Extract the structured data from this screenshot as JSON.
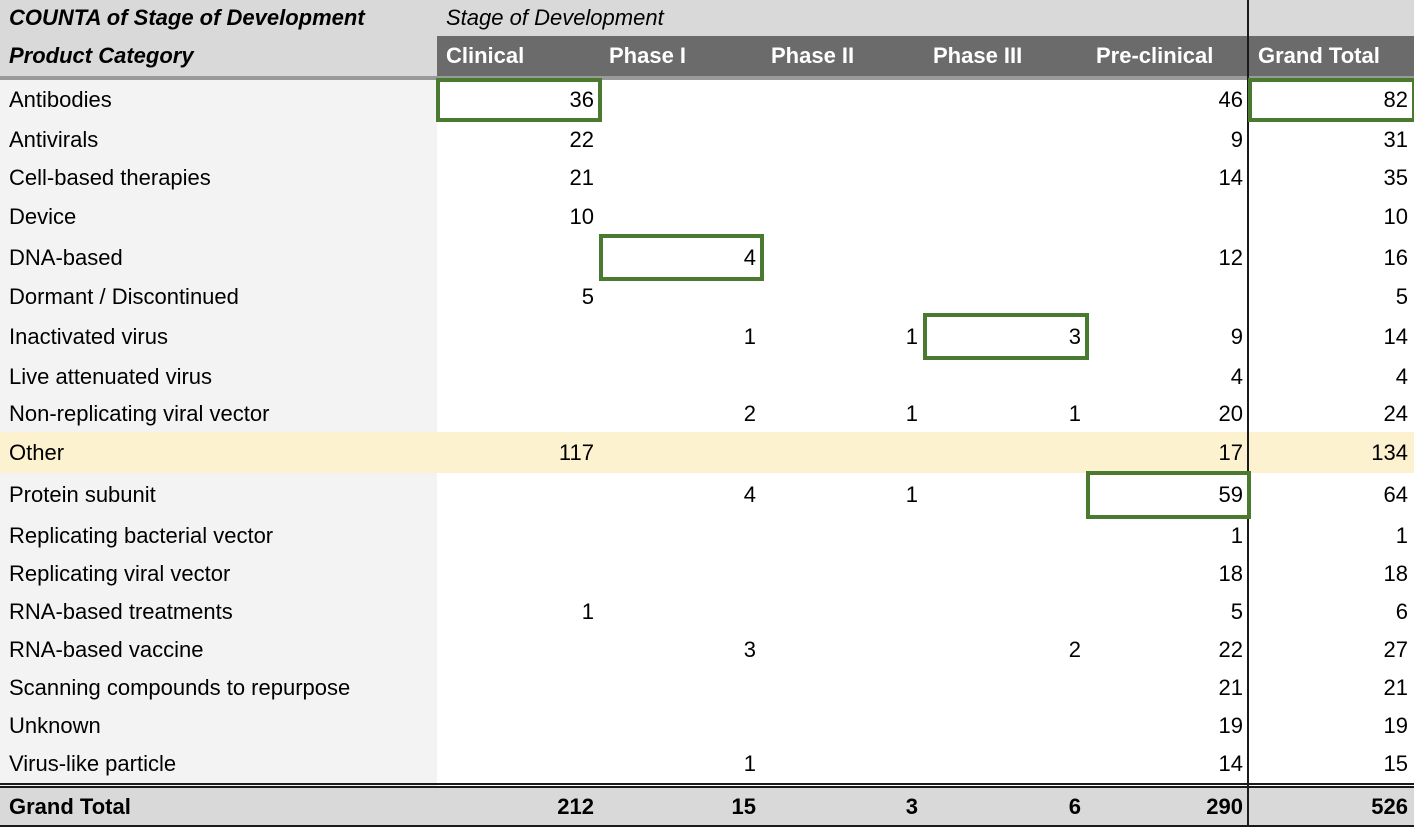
{
  "pivot": {
    "title": "COUNTA of Stage of Development",
    "column_field": "Stage of Development",
    "row_field": "Product Category",
    "columns": [
      "Clinical",
      "Phase I",
      "Phase II",
      "Phase III",
      "Pre-clinical",
      "Grand Total"
    ],
    "rows": [
      {
        "label": "Antibodies",
        "values": [
          "36",
          "",
          "",
          "",
          "46",
          "82"
        ]
      },
      {
        "label": "Antivirals",
        "values": [
          "22",
          "",
          "",
          "",
          "9",
          "31"
        ]
      },
      {
        "label": "Cell-based therapies",
        "values": [
          "21",
          "",
          "",
          "",
          "14",
          "35"
        ]
      },
      {
        "label": "Device",
        "values": [
          "10",
          "",
          "",
          "",
          "",
          "10"
        ]
      },
      {
        "label": "DNA-based",
        "values": [
          "",
          "4",
          "",
          "",
          "12",
          "16"
        ]
      },
      {
        "label": "Dormant / Discontinued",
        "values": [
          "5",
          "",
          "",
          "",
          "",
          "5"
        ]
      },
      {
        "label": "Inactivated virus",
        "values": [
          "",
          "1",
          "1",
          "3",
          "9",
          "14"
        ]
      },
      {
        "label": "Live attenuated virus",
        "values": [
          "",
          "",
          "",
          "",
          "4",
          "4"
        ]
      },
      {
        "label": "Non-replicating viral vector",
        "values": [
          "",
          "2",
          "1",
          "1",
          "20",
          "24"
        ]
      },
      {
        "label": "Other",
        "values": [
          "117",
          "",
          "",
          "",
          "17",
          "134"
        ]
      },
      {
        "label": "Protein subunit",
        "values": [
          "",
          "4",
          "1",
          "",
          "59",
          "64"
        ]
      },
      {
        "label": "Replicating bacterial vector",
        "values": [
          "",
          "",
          "",
          "",
          "1",
          "1"
        ]
      },
      {
        "label": "Replicating viral vector",
        "values": [
          "",
          "",
          "",
          "",
          "18",
          "18"
        ]
      },
      {
        "label": "RNA-based treatments",
        "values": [
          "1",
          "",
          "",
          "",
          "5",
          "6"
        ]
      },
      {
        "label": "RNA-based vaccine",
        "values": [
          "",
          "3",
          "",
          "2",
          "22",
          "27"
        ]
      },
      {
        "label": "Scanning compounds to repurpose",
        "values": [
          "",
          "",
          "",
          "",
          "21",
          "21"
        ]
      },
      {
        "label": "Unknown",
        "values": [
          "",
          "",
          "",
          "",
          "19",
          "19"
        ]
      },
      {
        "label": "Virus-like particle",
        "values": [
          "",
          "1",
          "",
          "",
          "14",
          "15"
        ]
      }
    ],
    "grand_total": {
      "label": "Grand Total",
      "values": [
        "212",
        "15",
        "3",
        "6",
        "290",
        "526"
      ]
    }
  },
  "highlighted_row": "Other",
  "selected_cells": [
    {
      "row": "Antibodies",
      "column": "Clinical"
    },
    {
      "row": "Antibodies",
      "column": "Grand Total"
    },
    {
      "row": "DNA-based",
      "column": "Phase I"
    },
    {
      "row": "Inactivated virus",
      "column": "Phase III"
    },
    {
      "row": "Protein subunit",
      "column": "Pre-clinical"
    }
  ],
  "colors": {
    "header_bg": "#d9d9d9",
    "header_dark_bg": "#6b6b6b",
    "label_col_bg": "#f3f3f3",
    "highlight_row_bg": "#fdf2d0",
    "selection_border": "#4a7a2f",
    "grid_line": "#1a1a1a"
  }
}
